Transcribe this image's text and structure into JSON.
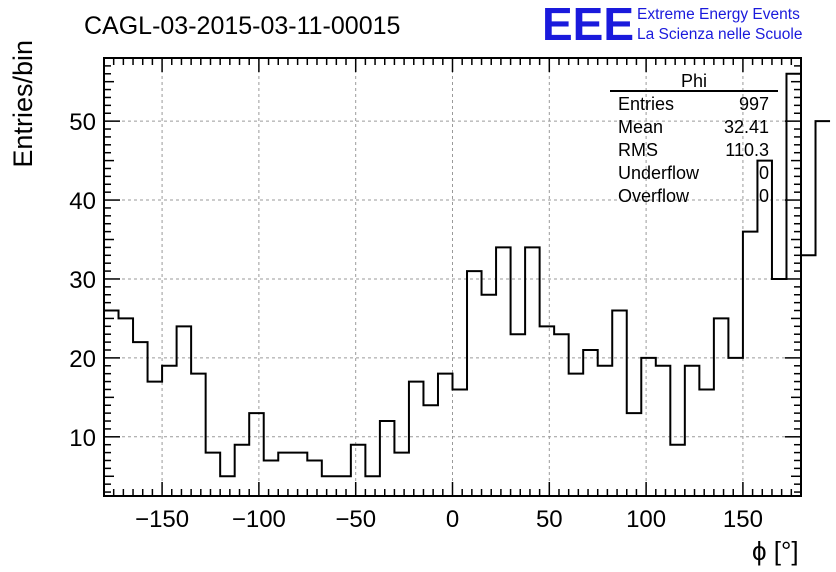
{
  "header": {
    "run_title": "CAGL-03-2015-03-11-00015",
    "logo_text": "EEE",
    "org_line1": "Extreme Energy Events",
    "org_line2": "La Scienza nelle Scuole",
    "brand_color": "#1a1adc"
  },
  "stats": {
    "title": "Phi",
    "rows": [
      {
        "label": "Entries",
        "value": "997"
      },
      {
        "label": "Mean",
        "value": "32.41"
      },
      {
        "label": "RMS",
        "value": "110.3"
      },
      {
        "label": "Underflow",
        "value": "0"
      },
      {
        "label": "Overflow",
        "value": "0"
      }
    ]
  },
  "chart_data": {
    "type": "histogram",
    "xlabel": "ϕ [°]",
    "ylabel": "Entries/bin",
    "xlim": [
      -180,
      180
    ],
    "ylim": [
      2.5,
      58
    ],
    "grid": true,
    "bin_width": 7.5,
    "bin_edges_start": -180,
    "values": [
      26,
      25,
      22,
      17,
      19,
      24,
      18,
      8,
      5,
      9,
      13,
      7,
      8,
      8,
      7,
      5,
      5,
      9,
      5,
      12,
      8,
      17,
      14,
      18,
      16,
      31,
      28,
      34,
      23,
      34,
      24,
      23,
      18,
      21,
      19,
      26,
      13,
      20,
      19,
      9,
      19,
      16,
      25,
      20,
      36,
      45,
      30,
      56,
      33,
      50
    ],
    "x_ticks": [
      -150,
      -100,
      -50,
      0,
      50,
      100,
      150
    ],
    "x_tick_labels": [
      "−150",
      "−100",
      "−50",
      "0",
      "50",
      "100",
      "150"
    ],
    "y_ticks": [
      10,
      20,
      30,
      40,
      50
    ],
    "y_tick_labels": [
      "10",
      "20",
      "30",
      "40",
      "50"
    ]
  }
}
